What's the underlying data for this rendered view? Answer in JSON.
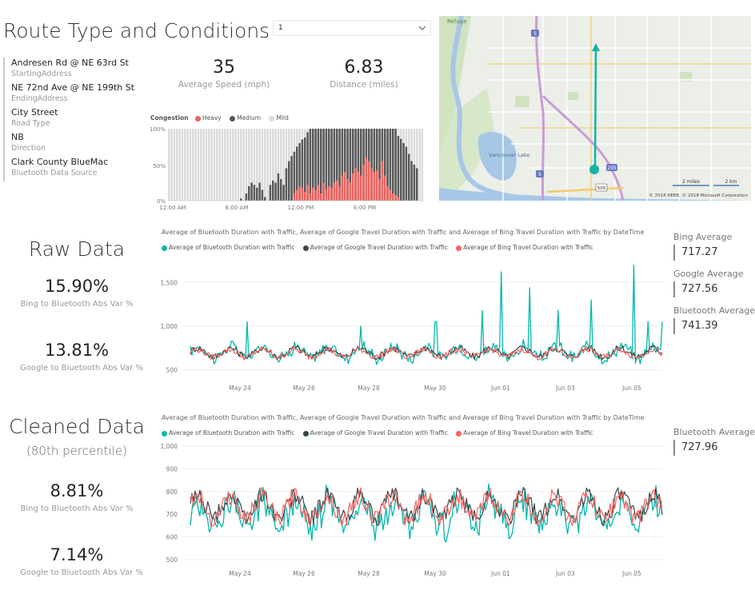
{
  "header": {
    "title": "Route Type and Conditions",
    "selector_value": "1"
  },
  "route_info": [
    {
      "value": "Andresen Rd @ NE 63rd St",
      "label": "StartingAddress"
    },
    {
      "value": "NE 72nd Ave @ NE 199th St",
      "label": "EndingAddress"
    },
    {
      "value": "City Street",
      "label": "Road Type"
    },
    {
      "value": "NB",
      "label": "Direction"
    },
    {
      "value": "Clark County BlueMac",
      "label": "Bluetooth Data Source"
    }
  ],
  "cards": {
    "speed": {
      "value": "35",
      "label": "Average Speed (mph)"
    },
    "distance": {
      "value": "6.83",
      "label": "Distance (miles)"
    }
  },
  "congestion": {
    "legend_title": "Congestion",
    "legend": [
      {
        "name": "Heavy",
        "color": "#f0625d"
      },
      {
        "name": "Medium",
        "color": "#575757"
      },
      {
        "name": "Mild",
        "color": "#dcdcdc"
      }
    ],
    "y_ticks": [
      "100%",
      "50%",
      "0%"
    ],
    "x_ticks": [
      "12:00 AM",
      "6:00 AM",
      "12:00 PM",
      "6:00 PM"
    ]
  },
  "map": {
    "labels": [
      "Refuge",
      "Vancouver Lake",
      "5",
      "5",
      "205",
      "500"
    ],
    "scale": [
      "2 miles",
      "2 km"
    ],
    "copyright": "© 2018 HERE, © 2018 Microsoft Corporation"
  },
  "raw": {
    "title": "Raw Data",
    "kpis": [
      {
        "value": "15.90%",
        "label": "Bing to Bluetooth Abs Var %"
      },
      {
        "value": "13.81%",
        "label": "Google to Bluetooth Abs Var %"
      }
    ],
    "averages": [
      {
        "label": "Bing Average",
        "value": "717.27"
      },
      {
        "label": "Google Average",
        "value": "727.56"
      },
      {
        "label": "Bluetooth Average",
        "value": "741.39"
      }
    ]
  },
  "cleaned": {
    "title": "Cleaned Data",
    "subtitle": "(80th percentile)",
    "kpis": [
      {
        "value": "8.81%",
        "label": "Bing to Bluetooth Abs Var %"
      },
      {
        "value": "7.14%",
        "label": "Google to Bluetooth Abs Var %"
      }
    ],
    "averages": [
      {
        "label": "Bluetooth Average",
        "value": "727.96"
      }
    ]
  },
  "line_chart_common": {
    "title": "Average of Bluetooth Duration with Traffic, Average of Google Travel Duration with Traffic and Average of Bing Travel Duration with Traffic by DateTime",
    "legend": [
      {
        "name": "Average of Bluetooth Duration with Traffic",
        "color": "#01b8aa"
      },
      {
        "name": "Average of Google Travel Duration with Traffic",
        "color": "#374649"
      },
      {
        "name": "Average of Bing Travel Duration with Traffic",
        "color": "#fd625e"
      }
    ]
  },
  "chart_data": [
    {
      "type": "bar",
      "name": "congestion",
      "categories_count": 96,
      "series": [
        {
          "name": "Mild",
          "values_profile": "background"
        },
        {
          "name": "Medium",
          "values": [
            0,
            0,
            0,
            0,
            0,
            0,
            0,
            0,
            0,
            0,
            0,
            0,
            0,
            0,
            0,
            0,
            0,
            0,
            0,
            0,
            0,
            0,
            0,
            0,
            0,
            0,
            0,
            3,
            0,
            10,
            20,
            25,
            22,
            18,
            25,
            15,
            5,
            0,
            22,
            28,
            25,
            38,
            30,
            22,
            45,
            55,
            62,
            68,
            75,
            80,
            85,
            88,
            95,
            100,
            100,
            100,
            100,
            100,
            100,
            100,
            100,
            100,
            100,
            100,
            100,
            100,
            100,
            100,
            100,
            100,
            100,
            100,
            100,
            100,
            100,
            100,
            100,
            100,
            100,
            100,
            100,
            100,
            100,
            100,
            100,
            100,
            90,
            86,
            80,
            75,
            65,
            55,
            50,
            45,
            0,
            0
          ]
        },
        {
          "name": "Heavy",
          "values": [
            0,
            0,
            0,
            0,
            0,
            0,
            0,
            0,
            0,
            0,
            0,
            0,
            0,
            0,
            0,
            0,
            0,
            0,
            0,
            0,
            0,
            0,
            0,
            0,
            0,
            0,
            0,
            0,
            0,
            0,
            0,
            0,
            0,
            0,
            0,
            0,
            0,
            0,
            0,
            0,
            0,
            0,
            0,
            0,
            0,
            0,
            0,
            10,
            15,
            20,
            18,
            12,
            22,
            10,
            18,
            15,
            22,
            10,
            25,
            15,
            20,
            18,
            25,
            28,
            20,
            35,
            40,
            30,
            25,
            38,
            45,
            40,
            35,
            50,
            60,
            55,
            45,
            40,
            42,
            30,
            55,
            35,
            20,
            15,
            10,
            8,
            5,
            0,
            0,
            0,
            0,
            0,
            0,
            0,
            0,
            0
          ]
        }
      ],
      "x_ticks": [
        "12:00 AM",
        "6:00 AM",
        "12:00 PM",
        "6:00 PM"
      ],
      "y_ticks": [
        "0%",
        "50%",
        "100%"
      ],
      "ylim": [
        0,
        100
      ]
    },
    {
      "type": "line",
      "name": "raw",
      "x_ticks": [
        "May 24",
        "May 26",
        "May 28",
        "May 30",
        "Jun 01",
        "Jun 03",
        "Jun 05"
      ],
      "y_ticks": [
        500,
        1000,
        1500
      ],
      "ylim": [
        450,
        1750
      ],
      "series": [
        {
          "name": "Average of Bluetooth Duration with Traffic",
          "baseline": 700,
          "amplitude": 120,
          "spikes": [
            [
              0.12,
              1050
            ],
            [
              0.36,
              1000
            ],
            [
              0.52,
              1050
            ],
            [
              0.62,
              1180
            ],
            [
              0.66,
              1620
            ],
            [
              0.72,
              1440
            ],
            [
              0.78,
              1180
            ],
            [
              0.85,
              1300
            ],
            [
              0.94,
              1700
            ],
            [
              0.97,
              1050
            ],
            [
              1.0,
              1050
            ]
          ]
        },
        {
          "name": "Average of Google Travel Duration with Traffic",
          "baseline": 700,
          "amplitude": 90
        },
        {
          "name": "Average of Bing Travel Duration with Traffic",
          "baseline": 690,
          "amplitude": 80
        }
      ]
    },
    {
      "type": "line",
      "name": "cleaned",
      "x_ticks": [
        "May 24",
        "May 26",
        "May 28",
        "May 30",
        "Jun 01",
        "Jun 03",
        "Jun 05"
      ],
      "y_ticks": [
        500,
        600,
        700,
        800,
        900,
        1000
      ],
      "ylim": [
        500,
        1000
      ],
      "series": [
        {
          "name": "Average of Bluetooth Duration with Traffic",
          "baseline": 700,
          "amplitude": 110
        },
        {
          "name": "Average of Google Travel Duration with Traffic",
          "baseline": 735,
          "amplitude": 90
        },
        {
          "name": "Average of Bing Travel Duration with Traffic",
          "baseline": 730,
          "amplitude": 90
        }
      ]
    }
  ]
}
